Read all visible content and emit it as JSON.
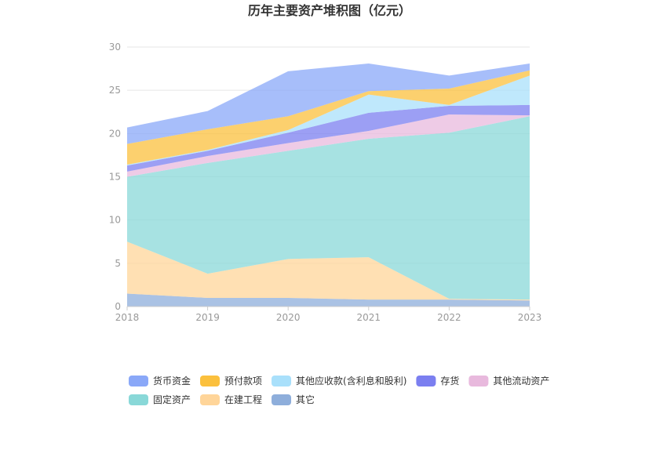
{
  "chart_data": {
    "type": "area",
    "stacked": true,
    "title": "历年主要资产堆积图（亿元）",
    "x": [
      "2018",
      "2019",
      "2020",
      "2021",
      "2022",
      "2023"
    ],
    "ylim": [
      0,
      30
    ],
    "yticks": [
      0,
      5,
      10,
      15,
      20,
      25,
      30
    ],
    "grid": true,
    "legend_position": "bottom",
    "series": [
      {
        "name": "其它",
        "color": "#8eaedb",
        "values": [
          1.5,
          1.0,
          1.0,
          0.8,
          0.8,
          0.7
        ]
      },
      {
        "name": "在建工程",
        "color": "#ffd599",
        "values": [
          6.0,
          2.8,
          4.5,
          4.9,
          0.1,
          0.1
        ]
      },
      {
        "name": "固定资产",
        "color": "#89d8d8",
        "values": [
          7.5,
          12.8,
          12.5,
          13.7,
          19.2,
          21.2
        ]
      },
      {
        "name": "其他流动资产",
        "color": "#e8b9dd",
        "values": [
          0.6,
          0.8,
          0.9,
          0.9,
          2.1,
          0.1
        ]
      },
      {
        "name": "存货",
        "color": "#7b7ff0",
        "values": [
          0.7,
          0.6,
          1.2,
          2.1,
          1.0,
          1.2
        ]
      },
      {
        "name": "其他应收款(含利息和股利)",
        "color": "#a9e0fb",
        "values": [
          0.1,
          0.1,
          0.3,
          2.1,
          0.1,
          3.4
        ]
      },
      {
        "name": "预付款项",
        "color": "#fbc03d",
        "values": [
          2.4,
          2.4,
          1.6,
          0.4,
          1.9,
          0.6
        ]
      },
      {
        "name": "货币资金",
        "color": "#8aa8f8",
        "values": [
          1.9,
          2.1,
          5.2,
          3.2,
          1.5,
          0.8
        ]
      }
    ],
    "legend_order": [
      "货币资金",
      "预付款项",
      "其他应收款(含利息和股利)",
      "存货",
      "其他流动资产",
      "固定资产",
      "在建工程",
      "其它"
    ]
  }
}
